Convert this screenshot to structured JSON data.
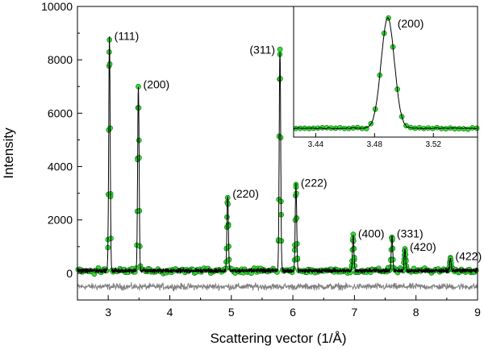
{
  "chart_data": {
    "type": "line",
    "xlabel": "Scattering vector (1/Å)",
    "ylabel": "Intensity",
    "xlim": [
      2.5,
      9.0
    ],
    "ylim": [
      -1000,
      10000
    ],
    "x_ticks": [
      3,
      4,
      5,
      6,
      7,
      8,
      9
    ],
    "y_ticks": [
      0,
      2000,
      4000,
      6000,
      8000,
      10000
    ],
    "colors": {
      "observed": "#33dd33",
      "observed_edge": "#1a7a1a",
      "calculated": "#000000",
      "difference": "#808080"
    },
    "baseline_level": 100,
    "difference_offset": -500,
    "peaks": [
      {
        "label": "(111)",
        "x": 3.02,
        "intensity": 8800
      },
      {
        "label": "(200)",
        "x": 3.49,
        "intensity": 7000
      },
      {
        "label": "(220)",
        "x": 4.94,
        "intensity": 2900
      },
      {
        "label": "(311)",
        "x": 5.79,
        "intensity": 8300
      },
      {
        "label": "(222)",
        "x": 6.05,
        "intensity": 3300
      },
      {
        "label": "(400)",
        "x": 6.98,
        "intensity": 1400
      },
      {
        "label": "(331)",
        "x": 7.61,
        "intensity": 1400
      },
      {
        "label": "(420)",
        "x": 7.82,
        "intensity": 900
      },
      {
        "label": "(422)",
        "x": 8.56,
        "intensity": 550
      }
    ],
    "series": [
      {
        "values": "observed points (green circles)"
      },
      {
        "values": "calculated fit (black line)"
      },
      {
        "values": "difference curve (grey line)"
      }
    ],
    "inset": {
      "xlim": [
        3.425,
        3.55
      ],
      "x_ticks": [
        3.44,
        3.48,
        3.52
      ],
      "peak_label": "(200)",
      "peak_x": 3.489,
      "peak_intensity": 7000
    }
  }
}
